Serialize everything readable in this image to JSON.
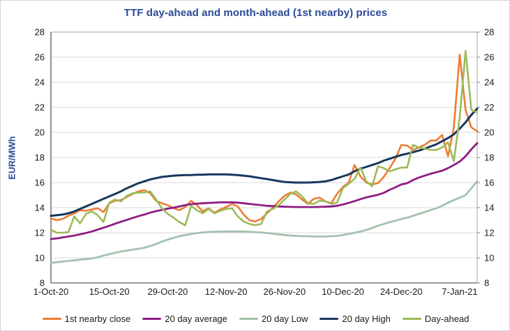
{
  "colors": {
    "title_text": "#2B4996",
    "axis_text": "#1a1a1a",
    "gridline": "#D9D9D9",
    "plot_border_light": "#A6A6A6",
    "plot_border_dark": "#595959",
    "tick_mark": "#808080",
    "frame_border": "#D4D4D4"
  },
  "chart_data": {
    "type": "line",
    "title": "TTF day-ahead and month-ahead (1st nearby) prices",
    "xlabel": "",
    "ylabel": "EUR/MWh",
    "ylim": [
      8,
      28
    ],
    "y_tick_step": 2,
    "grid": true,
    "legend_position": "bottom",
    "x_tick_labels": [
      "1-Oct-20",
      "15-Oct-20",
      "29-Oct-20",
      "12-Nov-20",
      "26-Nov-20",
      "10-Dec-20",
      "24-Dec-20",
      "7-Jan-21"
    ],
    "x_tick_indices": [
      0,
      10,
      20,
      30,
      40,
      50,
      60,
      70
    ],
    "x": [
      "1-Oct-20",
      "2-Oct-20",
      "5-Oct-20",
      "6-Oct-20",
      "7-Oct-20",
      "8-Oct-20",
      "9-Oct-20",
      "12-Oct-20",
      "13-Oct-20",
      "14-Oct-20",
      "15-Oct-20",
      "16-Oct-20",
      "19-Oct-20",
      "20-Oct-20",
      "21-Oct-20",
      "22-Oct-20",
      "23-Oct-20",
      "26-Oct-20",
      "27-Oct-20",
      "28-Oct-20",
      "29-Oct-20",
      "30-Oct-20",
      "2-Nov-20",
      "3-Nov-20",
      "4-Nov-20",
      "5-Nov-20",
      "6-Nov-20",
      "9-Nov-20",
      "10-Nov-20",
      "11-Nov-20",
      "12-Nov-20",
      "13-Nov-20",
      "16-Nov-20",
      "17-Nov-20",
      "18-Nov-20",
      "19-Nov-20",
      "20-Nov-20",
      "23-Nov-20",
      "24-Nov-20",
      "25-Nov-20",
      "26-Nov-20",
      "27-Nov-20",
      "30-Nov-20",
      "1-Dec-20",
      "2-Dec-20",
      "3-Dec-20",
      "4-Dec-20",
      "7-Dec-20",
      "8-Dec-20",
      "9-Dec-20",
      "10-Dec-20",
      "11-Dec-20",
      "14-Dec-20",
      "15-Dec-20",
      "16-Dec-20",
      "17-Dec-20",
      "18-Dec-20",
      "21-Dec-20",
      "22-Dec-20",
      "23-Dec-20",
      "24-Dec-20",
      "25-Dec-20",
      "28-Dec-20",
      "29-Dec-20",
      "30-Dec-20",
      "31-Dec-20",
      "1-Jan-21",
      "4-Jan-21",
      "5-Jan-21",
      "6-Jan-21",
      "7-Jan-21",
      "8-Jan-21",
      "11-Jan-21",
      "12-Jan-21"
    ],
    "series": [
      {
        "name": "1st nearby close",
        "color": "#ED7D31",
        "stroke_width": 2.6,
        "values": [
          13.15,
          13.0,
          13.1,
          13.35,
          13.55,
          13.8,
          13.75,
          13.85,
          13.95,
          13.65,
          14.35,
          14.55,
          14.6,
          14.85,
          15.1,
          15.3,
          15.4,
          15.15,
          14.55,
          14.35,
          14.2,
          13.95,
          13.8,
          14.05,
          14.55,
          14.2,
          13.7,
          13.95,
          13.6,
          13.85,
          14.05,
          14.3,
          14.1,
          13.45,
          13.0,
          12.9,
          13.1,
          13.55,
          14.0,
          14.5,
          14.95,
          15.2,
          15.05,
          14.65,
          14.3,
          14.7,
          14.8,
          14.5,
          14.35,
          15.1,
          15.65,
          16.0,
          17.4,
          16.5,
          16.0,
          15.85,
          15.95,
          16.45,
          17.15,
          17.9,
          19.0,
          18.95,
          18.6,
          18.8,
          19.0,
          19.35,
          19.35,
          19.8,
          18.1,
          20.4,
          26.2,
          21.8,
          20.4,
          20.1
        ]
      },
      {
        "name": "20 day average",
        "color": "#8E1C84",
        "stroke_width": 2.8,
        "values": [
          11.5,
          11.55,
          11.62,
          11.7,
          11.78,
          11.88,
          11.98,
          12.1,
          12.25,
          12.4,
          12.55,
          12.72,
          12.88,
          13.02,
          13.18,
          13.32,
          13.45,
          13.6,
          13.72,
          13.82,
          13.92,
          14.0,
          14.1,
          14.2,
          14.28,
          14.32,
          14.35,
          14.38,
          14.4,
          14.42,
          14.43,
          14.43,
          14.4,
          14.35,
          14.3,
          14.25,
          14.2,
          14.15,
          14.12,
          14.1,
          14.08,
          14.06,
          14.05,
          14.05,
          14.05,
          14.05,
          14.06,
          14.08,
          14.1,
          14.15,
          14.25,
          14.38,
          14.52,
          14.68,
          14.82,
          14.92,
          15.02,
          15.18,
          15.42,
          15.62,
          15.85,
          15.95,
          16.2,
          16.4,
          16.55,
          16.7,
          16.82,
          16.95,
          17.15,
          17.4,
          17.68,
          18.1,
          18.65,
          19.15
        ]
      },
      {
        "name": "20 day Low",
        "color": "#A3C1AD",
        "stroke_width": 2.8,
        "values": [
          9.6,
          9.65,
          9.7,
          9.75,
          9.8,
          9.85,
          9.9,
          9.95,
          10.05,
          10.18,
          10.3,
          10.4,
          10.5,
          10.58,
          10.65,
          10.72,
          10.8,
          10.95,
          11.1,
          11.3,
          11.45,
          11.6,
          11.72,
          11.82,
          11.9,
          11.97,
          12.02,
          12.06,
          12.08,
          12.1,
          12.1,
          12.1,
          12.1,
          12.1,
          12.08,
          12.05,
          12.02,
          11.98,
          11.92,
          11.87,
          11.82,
          11.78,
          11.75,
          11.73,
          11.72,
          11.7,
          11.7,
          11.7,
          11.72,
          11.75,
          11.82,
          11.9,
          12.0,
          12.1,
          12.22,
          12.38,
          12.55,
          12.7,
          12.85,
          12.95,
          13.1,
          13.2,
          13.35,
          13.5,
          13.65,
          13.8,
          13.95,
          14.15,
          14.4,
          14.6,
          14.8,
          15.0,
          15.55,
          16.1
        ]
      },
      {
        "name": "20 day High",
        "color": "#17375E",
        "stroke_width": 3.0,
        "values": [
          13.35,
          13.4,
          13.45,
          13.55,
          13.7,
          13.9,
          14.1,
          14.3,
          14.5,
          14.7,
          14.9,
          15.1,
          15.3,
          15.55,
          15.75,
          15.95,
          16.1,
          16.25,
          16.35,
          16.45,
          16.5,
          16.55,
          16.58,
          16.6,
          16.6,
          16.62,
          16.63,
          16.65,
          16.65,
          16.65,
          16.65,
          16.63,
          16.6,
          16.55,
          16.5,
          16.42,
          16.35,
          16.28,
          16.2,
          16.12,
          16.05,
          16.02,
          16.0,
          16.0,
          16.0,
          16.02,
          16.05,
          16.1,
          16.2,
          16.35,
          16.5,
          16.65,
          16.9,
          17.1,
          17.25,
          17.4,
          17.55,
          17.75,
          17.9,
          18.05,
          18.2,
          18.3,
          18.42,
          18.55,
          18.7,
          18.88,
          19.05,
          19.3,
          19.55,
          19.85,
          20.3,
          20.8,
          21.4,
          21.9
        ]
      },
      {
        "name": "Day-ahead",
        "color": "#9BBB59",
        "stroke_width": 2.6,
        "values": [
          12.25,
          12.0,
          12.0,
          12.05,
          13.3,
          12.75,
          13.5,
          13.7,
          13.4,
          12.85,
          14.4,
          14.65,
          14.5,
          14.95,
          15.15,
          15.2,
          15.2,
          15.3,
          14.65,
          13.95,
          13.5,
          13.2,
          12.85,
          12.6,
          14.15,
          13.8,
          13.55,
          13.9,
          13.55,
          13.75,
          13.9,
          13.95,
          13.3,
          12.9,
          12.7,
          12.6,
          12.7,
          13.7,
          13.9,
          14.2,
          14.65,
          15.1,
          15.3,
          14.9,
          14.35,
          14.3,
          14.55,
          14.5,
          14.3,
          14.4,
          15.55,
          15.9,
          16.3,
          17.2,
          16.1,
          15.7,
          17.3,
          17.15,
          16.9,
          17.05,
          17.2,
          17.2,
          19.0,
          18.8,
          18.7,
          18.6,
          18.6,
          18.8,
          19.2,
          17.7,
          21.2,
          26.5,
          21.8,
          21.6
        ]
      }
    ]
  }
}
